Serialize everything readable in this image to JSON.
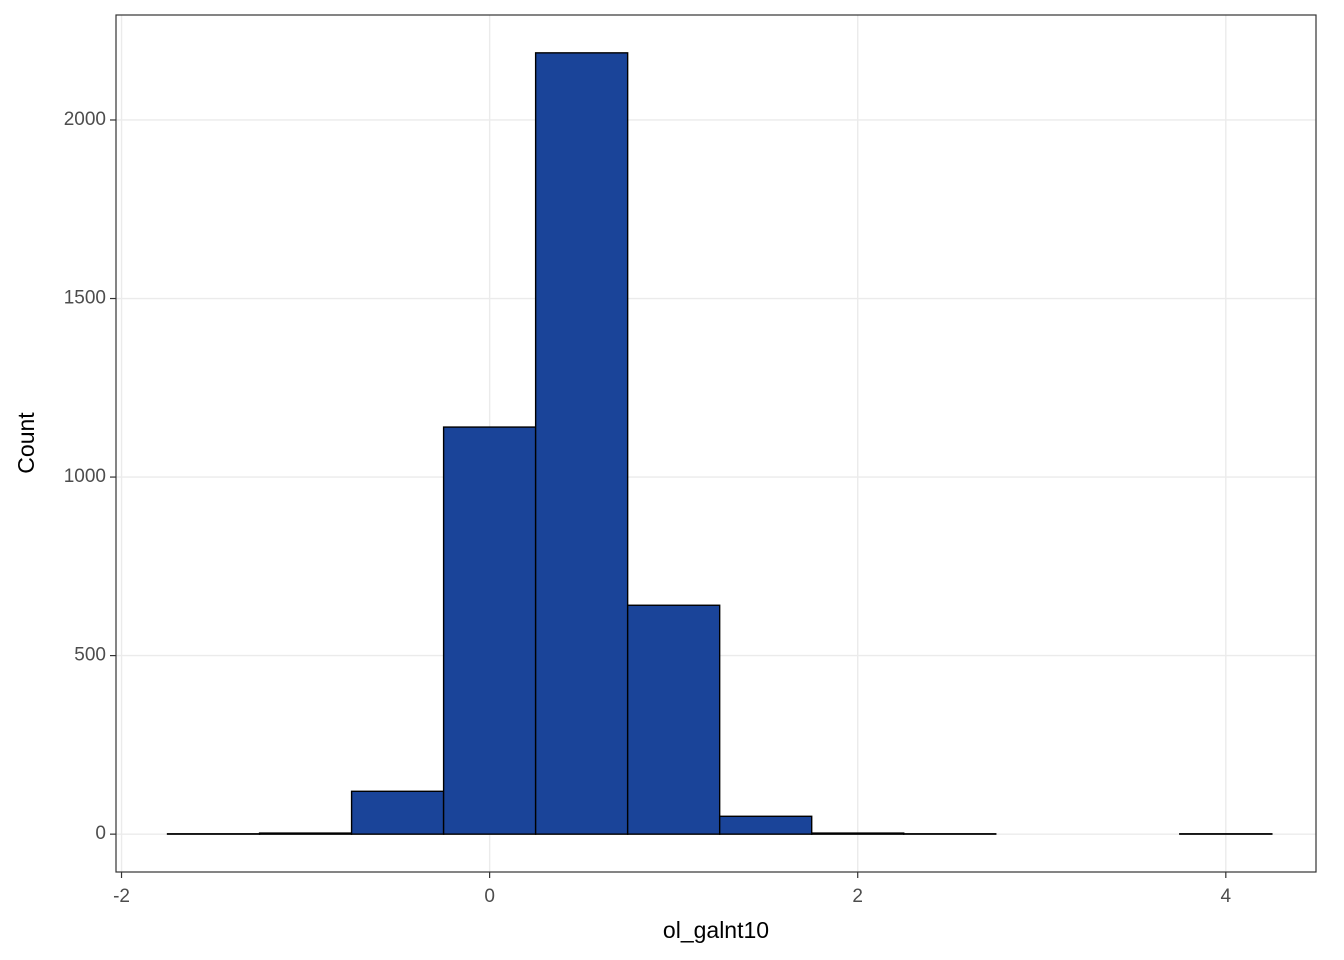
{
  "chart_data": {
    "type": "histogram",
    "x_label": "ol_galnt10",
    "y_label": "Count",
    "bins": [
      -1.75,
      -1.25,
      -0.75,
      -0.25,
      0.25,
      0.75,
      1.25,
      1.75,
      2.25,
      2.75,
      3.25,
      3.75,
      4.25
    ],
    "values": [
      1,
      3,
      120,
      1140,
      2188,
      641,
      50,
      3,
      1,
      0,
      0,
      1
    ],
    "color": "#1a4499",
    "xlim": [
      -2.03,
      4.49
    ],
    "xticks": [
      -2,
      0,
      2,
      4
    ],
    "ylim": [
      -106,
      2294
    ],
    "yticks": [
      0,
      500,
      1000,
      1500,
      2000
    ],
    "grid": true
  }
}
